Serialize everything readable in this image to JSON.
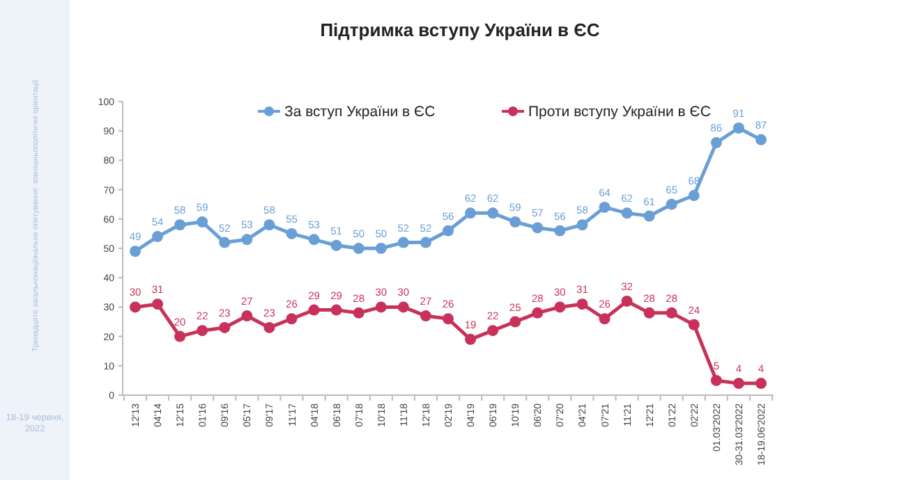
{
  "chart_data": {
    "type": "line",
    "title": "Підтримка вступу України в ЄС",
    "categories": [
      "12'13",
      "04'14",
      "12'15",
      "01'16",
      "09'16",
      "05'17",
      "09'17",
      "11'17",
      "04'18",
      "06'18",
      "07'18",
      "10'18",
      "11'18",
      "12'18",
      "02'19",
      "04'19",
      "06'19",
      "10'19",
      "06'20",
      "07'20",
      "04'21",
      "07'21",
      "11'21",
      "12'21",
      "01'22",
      "02'22",
      "01.03'2022",
      "30-31.03'2022",
      "18-19.06'2022"
    ],
    "series": [
      {
        "name": "За вступ України в ЄС",
        "color": "#6a9fd6",
        "values": [
          49,
          54,
          58,
          59,
          52,
          53,
          58,
          55,
          53,
          51,
          50,
          50,
          52,
          52,
          56,
          62,
          62,
          59,
          57,
          56,
          58,
          64,
          62,
          61,
          65,
          68,
          86,
          91,
          87
        ]
      },
      {
        "name": "Проти вступу України в ЄС",
        "color": "#c8325a",
        "values": [
          30,
          31,
          20,
          22,
          23,
          27,
          23,
          26,
          29,
          29,
          28,
          30,
          30,
          27,
          26,
          19,
          22,
          25,
          28,
          30,
          31,
          26,
          32,
          28,
          28,
          24,
          5,
          4,
          4
        ]
      }
    ],
    "ylim": [
      0,
      100
    ],
    "yticks": [
      0,
      10,
      20,
      30,
      40,
      50,
      60,
      70,
      80,
      90,
      100
    ],
    "data_labels": true,
    "legend": "top",
    "marker": "circle",
    "line_style": "solid",
    "grid": false,
    "annotations": [
      "Тринадцяте загальнонаціональне опитування: зовнішньополітичні орієнтації",
      "18-19 червня, 2022"
    ]
  }
}
